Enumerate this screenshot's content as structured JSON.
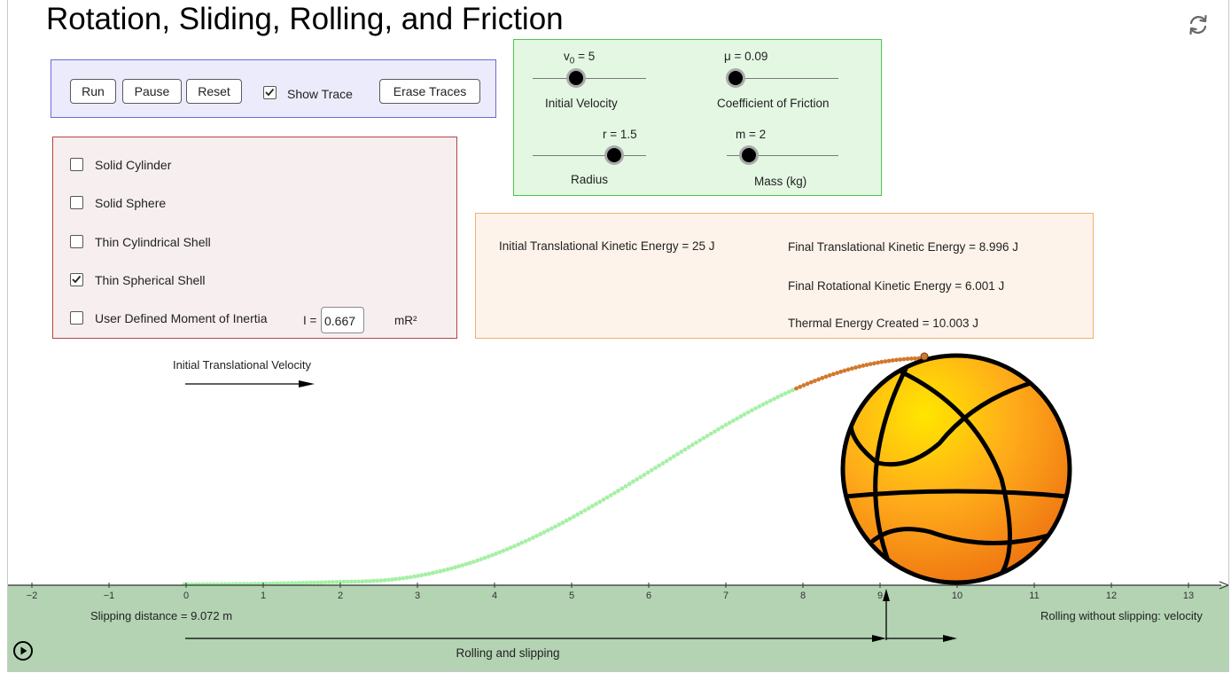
{
  "title": "Rotation, Sliding, Rolling, and Friction",
  "controls": {
    "run_label": "Run",
    "pause_label": "Pause",
    "reset_label": "Reset",
    "show_trace_label": "Show Trace",
    "show_trace_checked": true,
    "erase_traces_label": "Erase Traces"
  },
  "shapes": {
    "items": [
      {
        "label": "Solid Cylinder",
        "checked": false
      },
      {
        "label": "Solid Sphere",
        "checked": false
      },
      {
        "label": "Thin Cylindrical Shell",
        "checked": false
      },
      {
        "label": "Thin Spherical Shell",
        "checked": true
      },
      {
        "label": "User Defined Moment of Inertia",
        "checked": false
      }
    ],
    "inertia_prefix": "I =",
    "inertia_value": "0.667",
    "inertia_unit": "mR²"
  },
  "sliders": {
    "v0": {
      "name": "v",
      "sub": "0",
      "equals": " = 5",
      "caption": "Initial Velocity",
      "value": 5
    },
    "mu": {
      "text": "μ = 0.09",
      "caption": "Coefficient of Friction",
      "value": 0.09
    },
    "r": {
      "text": "r = 1.5",
      "caption": "Radius",
      "value": 1.5
    },
    "m": {
      "text": "m = 2",
      "caption": "Mass (kg)",
      "value": 2
    }
  },
  "energy": {
    "initial_translational": "Initial Translational Kinetic Energy = 25 J",
    "final_translational": "Final Translational Kinetic Energy = 8.996 J",
    "final_rotational": "Final Rotational Kinetic Energy = 6.001 J",
    "thermal": "Thermal Energy Created = 10.003 J"
  },
  "graph": {
    "velocity_label": "Initial Translational Velocity",
    "slipping_distance": "Slipping distance = 9.072 m",
    "rolling_slipping_label": "Rolling and slipping",
    "rolling_no_slip_label": "Rolling without slipping: velocity",
    "x_ticks": [
      "−2",
      "−1",
      "0",
      "1",
      "2",
      "3",
      "4",
      "5",
      "6",
      "7",
      "8",
      "9",
      "10",
      "11",
      "12",
      "13"
    ],
    "slip_end_x": 9.072,
    "colors": {
      "trace_green": "#a6f0a6",
      "trace_orange": "#d2782c",
      "ground": "#b3d3b3"
    }
  },
  "icons": {
    "refresh": "refresh-icon",
    "play": "play-circle-icon",
    "ball": "basketball-icon"
  }
}
